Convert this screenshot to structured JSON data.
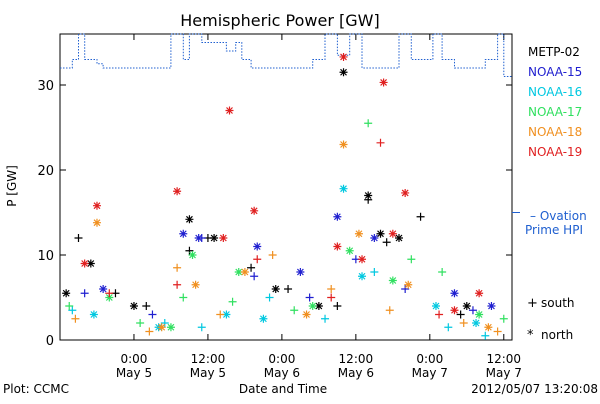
{
  "chart_data": {
    "type": "scatter",
    "title": "Hemispheric Power [GW]",
    "ylabel": "P [GW]",
    "xlabel": "Date and Time",
    "xlim": [
      "2012-05-04 12:00",
      "2012-05-07 13:20"
    ],
    "ylim": [
      0,
      36
    ],
    "yticks": [
      0,
      10,
      20,
      30
    ],
    "xticks": [
      {
        "t": "2012-05-05 00:00",
        "line1": "0:00",
        "line2": "May 5"
      },
      {
        "t": "2012-05-05 12:00",
        "line1": "12:00",
        "line2": "May 5"
      },
      {
        "t": "2012-05-06 00:00",
        "line1": "0:00",
        "line2": "May 6"
      },
      {
        "t": "2012-05-06 12:00",
        "line1": "12:00",
        "line2": "May 6"
      },
      {
        "t": "2012-05-07 00:00",
        "line1": "0:00",
        "line2": "May 7"
      },
      {
        "t": "2012-05-07 12:00",
        "line1": "12:00",
        "line2": "May 7"
      }
    ],
    "grid": false,
    "legend_position": "right",
    "series": [
      {
        "name": "METP-02",
        "color": "#000000",
        "south": [
          [
            "2012-05-04 15:00",
            12.0
          ],
          [
            "2012-05-04 21:00",
            5.5
          ],
          [
            "2012-05-05 02:00",
            4.0
          ],
          [
            "2012-05-05 09:00",
            10.5
          ],
          [
            "2012-05-05 12:00",
            12.0
          ],
          [
            "2012-05-05 19:00",
            8.5
          ],
          [
            "2012-05-06 01:00",
            6.0
          ],
          [
            "2012-05-06 09:00",
            4.0
          ],
          [
            "2012-05-06 14:00",
            16.5
          ],
          [
            "2012-05-06 17:00",
            11.5
          ],
          [
            "2012-05-06 22:30",
            14.5
          ],
          [
            "2012-05-07 05:00",
            3.0
          ]
        ],
        "north": [
          [
            "2012-05-04 13:00",
            5.5
          ],
          [
            "2012-05-04 17:00",
            9.0
          ],
          [
            "2012-05-05 00:00",
            4.0
          ],
          [
            "2012-05-05 09:00",
            14.2
          ],
          [
            "2012-05-05 13:00",
            12.0
          ],
          [
            "2012-05-05 23:00",
            6.0
          ],
          [
            "2012-05-06 06:00",
            4.0
          ],
          [
            "2012-05-06 10:00",
            31.5
          ],
          [
            "2012-05-06 14:00",
            17.0
          ],
          [
            "2012-05-06 16:00",
            12.5
          ],
          [
            "2012-05-06 19:00",
            12.0
          ],
          [
            "2012-05-07 06:00",
            4.0
          ]
        ]
      },
      {
        "name": "NOAA-15",
        "color": "#2020d0",
        "south": [
          [
            "2012-05-04 16:00",
            5.5
          ],
          [
            "2012-05-05 03:00",
            3.0
          ],
          [
            "2012-05-05 11:00",
            12.0
          ],
          [
            "2012-05-05 19:30",
            7.5
          ],
          [
            "2012-05-06 04:30",
            5.0
          ],
          [
            "2012-05-06 12:00",
            9.5
          ],
          [
            "2012-05-06 20:00",
            6.0
          ],
          [
            "2012-05-07 07:00",
            3.5
          ]
        ],
        "north": [
          [
            "2012-05-04 19:00",
            6.0
          ],
          [
            "2012-05-05 08:00",
            12.5
          ],
          [
            "2012-05-05 10:30",
            12.0
          ],
          [
            "2012-05-05 20:00",
            11.0
          ],
          [
            "2012-05-06 03:00",
            8.0
          ],
          [
            "2012-05-06 09:00",
            14.5
          ],
          [
            "2012-05-06 15:00",
            12.0
          ],
          [
            "2012-05-07 04:00",
            5.5
          ],
          [
            "2012-05-07 10:00",
            4.0
          ]
        ]
      },
      {
        "name": "NOAA-16",
        "color": "#00c8e0",
        "south": [
          [
            "2012-05-04 14:00",
            3.5
          ],
          [
            "2012-05-05 05:00",
            2.0
          ],
          [
            "2012-05-05 11:00",
            1.5
          ],
          [
            "2012-05-05 22:00",
            5.0
          ],
          [
            "2012-05-06 07:00",
            2.5
          ],
          [
            "2012-05-06 15:00",
            8.0
          ],
          [
            "2012-05-07 03:00",
            1.5
          ],
          [
            "2012-05-07 09:00",
            0.5
          ]
        ],
        "north": [
          [
            "2012-05-04 17:30",
            3.0
          ],
          [
            "2012-05-05 04:00",
            1.5
          ],
          [
            "2012-05-05 15:00",
            3.0
          ],
          [
            "2012-05-05 21:00",
            2.5
          ],
          [
            "2012-05-06 10:00",
            17.8
          ],
          [
            "2012-05-06 13:00",
            7.5
          ],
          [
            "2012-05-07 01:00",
            4.0
          ],
          [
            "2012-05-07 07:30",
            2.0
          ]
        ]
      },
      {
        "name": "NOAA-17",
        "color": "#30e060",
        "south": [
          [
            "2012-05-04 13:30",
            4.0
          ],
          [
            "2012-05-05 01:00",
            2.0
          ],
          [
            "2012-05-05 08:00",
            5.0
          ],
          [
            "2012-05-05 16:00",
            4.5
          ],
          [
            "2012-05-06 02:00",
            3.5
          ],
          [
            "2012-05-06 14:00",
            25.5
          ],
          [
            "2012-05-06 21:00",
            9.5
          ],
          [
            "2012-05-07 02:00",
            8.0
          ],
          [
            "2012-05-07 12:00",
            2.5
          ]
        ],
        "north": [
          [
            "2012-05-04 20:00",
            5.0
          ],
          [
            "2012-05-05 06:00",
            1.5
          ],
          [
            "2012-05-05 09:30",
            10.0
          ],
          [
            "2012-05-05 17:00",
            8.0
          ],
          [
            "2012-05-06 05:00",
            4.0
          ],
          [
            "2012-05-06 11:00",
            10.5
          ],
          [
            "2012-05-06 18:00",
            7.0
          ],
          [
            "2012-05-07 08:00",
            3.0
          ]
        ]
      },
      {
        "name": "NOAA-18",
        "color": "#f09020",
        "south": [
          [
            "2012-05-04 14:30",
            2.5
          ],
          [
            "2012-05-05 02:30",
            1.0
          ],
          [
            "2012-05-05 07:00",
            8.5
          ],
          [
            "2012-05-05 14:00",
            3.0
          ],
          [
            "2012-05-05 22:30",
            10.0
          ],
          [
            "2012-05-06 08:00",
            6.0
          ],
          [
            "2012-05-06 17:30",
            3.5
          ],
          [
            "2012-05-07 05:30",
            2.0
          ],
          [
            "2012-05-07 11:00",
            1.0
          ]
        ],
        "north": [
          [
            "2012-05-04 18:00",
            13.8
          ],
          [
            "2012-05-05 04:30",
            1.5
          ],
          [
            "2012-05-05 10:00",
            6.5
          ],
          [
            "2012-05-05 18:00",
            8.0
          ],
          [
            "2012-05-06 04:00",
            3.0
          ],
          [
            "2012-05-06 10:00",
            23.0
          ],
          [
            "2012-05-06 12:30",
            12.5
          ],
          [
            "2012-05-06 20:30",
            6.5
          ],
          [
            "2012-05-07 09:30",
            1.5
          ]
        ]
      },
      {
        "name": "NOAA-19",
        "color": "#e02020",
        "south": [
          [
            "2012-05-04 20:00",
            5.5
          ],
          [
            "2012-05-05 07:00",
            6.5
          ],
          [
            "2012-05-05 20:00",
            9.5
          ],
          [
            "2012-05-06 08:00",
            5.0
          ],
          [
            "2012-05-06 16:00",
            23.2
          ],
          [
            "2012-05-07 01:30",
            3.0
          ]
        ],
        "north": [
          [
            "2012-05-04 16:00",
            9.0
          ],
          [
            "2012-05-04 18:00",
            15.8
          ],
          [
            "2012-05-05 07:00",
            17.5
          ],
          [
            "2012-05-05 14:30",
            12.0
          ],
          [
            "2012-05-05 15:30",
            27.0
          ],
          [
            "2012-05-05 19:30",
            15.2
          ],
          [
            "2012-05-06 09:00",
            11.0
          ],
          [
            "2012-05-06 10:00",
            33.3
          ],
          [
            "2012-05-06 13:00",
            9.5
          ],
          [
            "2012-05-06 16:30",
            30.3
          ],
          [
            "2012-05-06 18:00",
            12.5
          ],
          [
            "2012-05-06 20:00",
            17.3
          ],
          [
            "2012-05-07 04:00",
            3.5
          ],
          [
            "2012-05-07 08:00",
            5.5
          ]
        ]
      }
    ],
    "ovation": {
      "label1": "– Ovation",
      "label2": "Prime HPI",
      "color": "#2060d0",
      "values": [
        [
          "2012-05-04 12:00",
          32.0
        ],
        [
          "2012-05-04 14:00",
          32.0
        ],
        [
          "2012-05-04 14:00",
          33.0
        ],
        [
          "2012-05-04 15:00",
          33.0
        ],
        [
          "2012-05-04 15:00",
          36.0
        ],
        [
          "2012-05-04 16:00",
          36.0
        ],
        [
          "2012-05-04 16:00",
          33.0
        ],
        [
          "2012-05-04 18:00",
          33.0
        ],
        [
          "2012-05-04 18:00",
          32.5
        ],
        [
          "2012-05-04 19:00",
          32.5
        ],
        [
          "2012-05-04 19:00",
          32.0
        ],
        [
          "2012-05-05 06:00",
          32.0
        ],
        [
          "2012-05-05 06:00",
          36.0
        ],
        [
          "2012-05-05 08:00",
          36.0
        ],
        [
          "2012-05-05 08:00",
          33.0
        ],
        [
          "2012-05-05 09:00",
          33.0
        ],
        [
          "2012-05-05 09:00",
          36.0
        ],
        [
          "2012-05-05 11:00",
          36.0
        ],
        [
          "2012-05-05 11:00",
          35.0
        ],
        [
          "2012-05-05 15:00",
          35.0
        ],
        [
          "2012-05-05 15:00",
          34.0
        ],
        [
          "2012-05-05 16:30",
          34.0
        ],
        [
          "2012-05-05 16:30",
          35.0
        ],
        [
          "2012-05-05 17:30",
          35.0
        ],
        [
          "2012-05-05 17:30",
          33.0
        ],
        [
          "2012-05-05 19:00",
          33.0
        ],
        [
          "2012-05-05 19:00",
          32.0
        ],
        [
          "2012-05-06 05:00",
          32.0
        ],
        [
          "2012-05-06 05:00",
          33.0
        ],
        [
          "2012-05-06 07:00",
          33.0
        ],
        [
          "2012-05-06 07:00",
          36.0
        ],
        [
          "2012-05-06 09:00",
          36.0
        ],
        [
          "2012-05-06 09:00",
          33.5
        ],
        [
          "2012-05-06 11:00",
          33.5
        ],
        [
          "2012-05-06 11:00",
          36.0
        ],
        [
          "2012-05-06 13:00",
          36.0
        ],
        [
          "2012-05-06 13:00",
          32.0
        ],
        [
          "2012-05-06 19:00",
          32.0
        ],
        [
          "2012-05-06 19:00",
          36.0
        ],
        [
          "2012-05-06 21:00",
          36.0
        ],
        [
          "2012-05-06 21:00",
          33.0
        ],
        [
          "2012-05-07 00:30",
          33.0
        ],
        [
          "2012-05-07 00:30",
          36.0
        ],
        [
          "2012-05-07 02:00",
          36.0
        ],
        [
          "2012-05-07 02:00",
          33.0
        ],
        [
          "2012-05-07 04:00",
          33.0
        ],
        [
          "2012-05-07 04:00",
          32.0
        ],
        [
          "2012-05-07 09:00",
          32.0
        ],
        [
          "2012-05-07 09:00",
          33.0
        ],
        [
          "2012-05-07 11:00",
          33.0
        ],
        [
          "2012-05-07 11:00",
          36.0
        ],
        [
          "2012-05-07 12:00",
          36.0
        ],
        [
          "2012-05-07 12:00",
          31.0
        ],
        [
          "2012-05-07 13:20",
          31.0
        ]
      ]
    },
    "marker_legend": [
      {
        "symbol": "+",
        "label": "south"
      },
      {
        "symbol": "*",
        "label": "north"
      }
    ]
  },
  "footer": {
    "left": "Plot: CCMC",
    "right": "2012/05/07 13:20:08"
  }
}
